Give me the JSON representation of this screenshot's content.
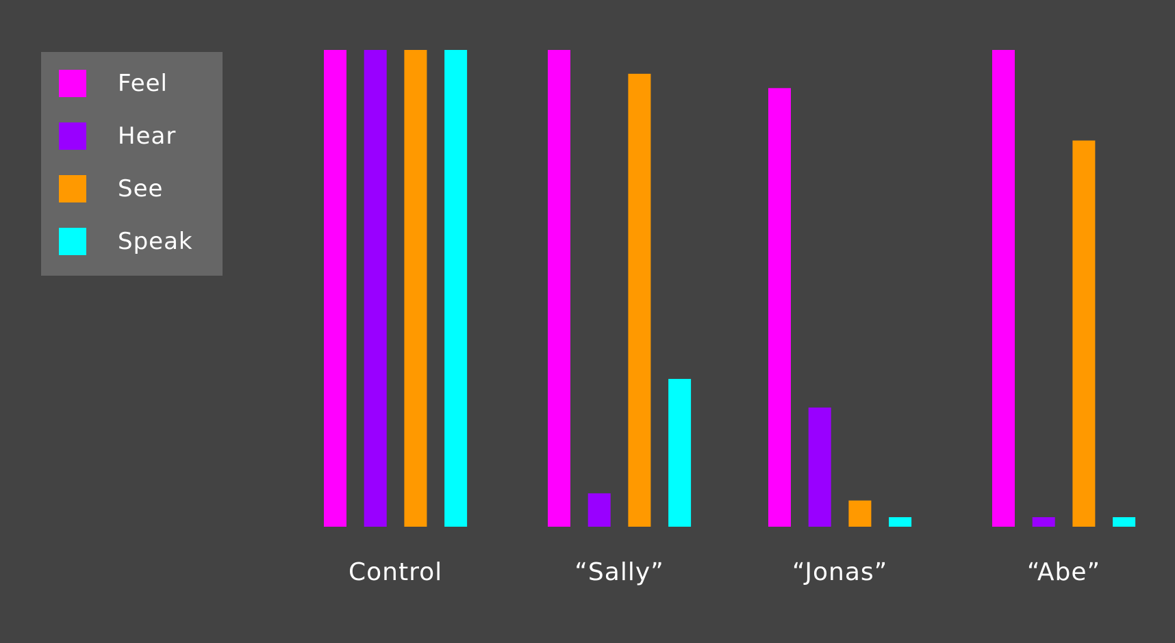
{
  "chart_data": {
    "type": "bar",
    "categories": [
      "Control",
      "“Sally”",
      "“Jonas”",
      "“Abe”"
    ],
    "series": [
      {
        "name": "Feel",
        "color": "#ff00ff",
        "values": [
          100,
          100,
          92,
          100
        ]
      },
      {
        "name": "Hear",
        "color": "#9900ff",
        "values": [
          100,
          7,
          25,
          2
        ]
      },
      {
        "name": "See",
        "color": "#ff9900",
        "values": [
          100,
          95,
          5.5,
          81
        ]
      },
      {
        "name": "Speak",
        "color": "#00ffff",
        "values": [
          100,
          31,
          2,
          2
        ]
      }
    ],
    "ylim": [
      0,
      100
    ],
    "grid": false,
    "legend_position": "top-left"
  },
  "colors": {
    "background": "#434343",
    "legend_background": "#666666",
    "text": "#ffffff"
  }
}
